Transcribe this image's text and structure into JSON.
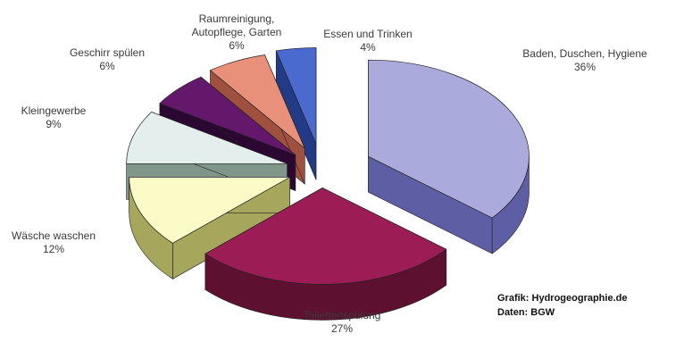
{
  "chart_data": {
    "type": "pie",
    "title": "",
    "unit": "%",
    "slices": [
      {
        "name_lines": [
          "Baden, Duschen, Hygiene"
        ],
        "value": 36,
        "value_label": "36%",
        "top": "#aaaadd",
        "side": "#5e5ea4"
      },
      {
        "name_lines": [
          "Toilettenspülung"
        ],
        "value": 27,
        "value_label": "27%",
        "top": "#9c1c56",
        "side": "#5e1030"
      },
      {
        "name_lines": [
          "Wäsche waschen"
        ],
        "value": 12,
        "value_label": "12%",
        "top": "#fbfbc8",
        "side": "#a6a65c"
      },
      {
        "name_lines": [
          "Kleingewerbe"
        ],
        "value": 9,
        "value_label": "9%",
        "top": "#e4eeec",
        "side": "#7f9688"
      },
      {
        "name_lines": [
          "Geschirr spülen"
        ],
        "value": 6,
        "value_label": "6%",
        "top": "#64186c",
        "side": "#2a0832"
      },
      {
        "name_lines": [
          "Raumreinigung,",
          "Autopflege, Garten"
        ],
        "value": 6,
        "value_label": "6%",
        "top": "#e8907a",
        "side": "#a0503e"
      },
      {
        "name_lines": [
          "Essen und Trinken"
        ],
        "value": 4,
        "value_label": "4%",
        "top": "#4a6ad0",
        "side": "#233a86"
      }
    ],
    "credits": {
      "line1": "Grafik: Hydrogeographie.de",
      "line2": "Daten: BGW"
    }
  }
}
